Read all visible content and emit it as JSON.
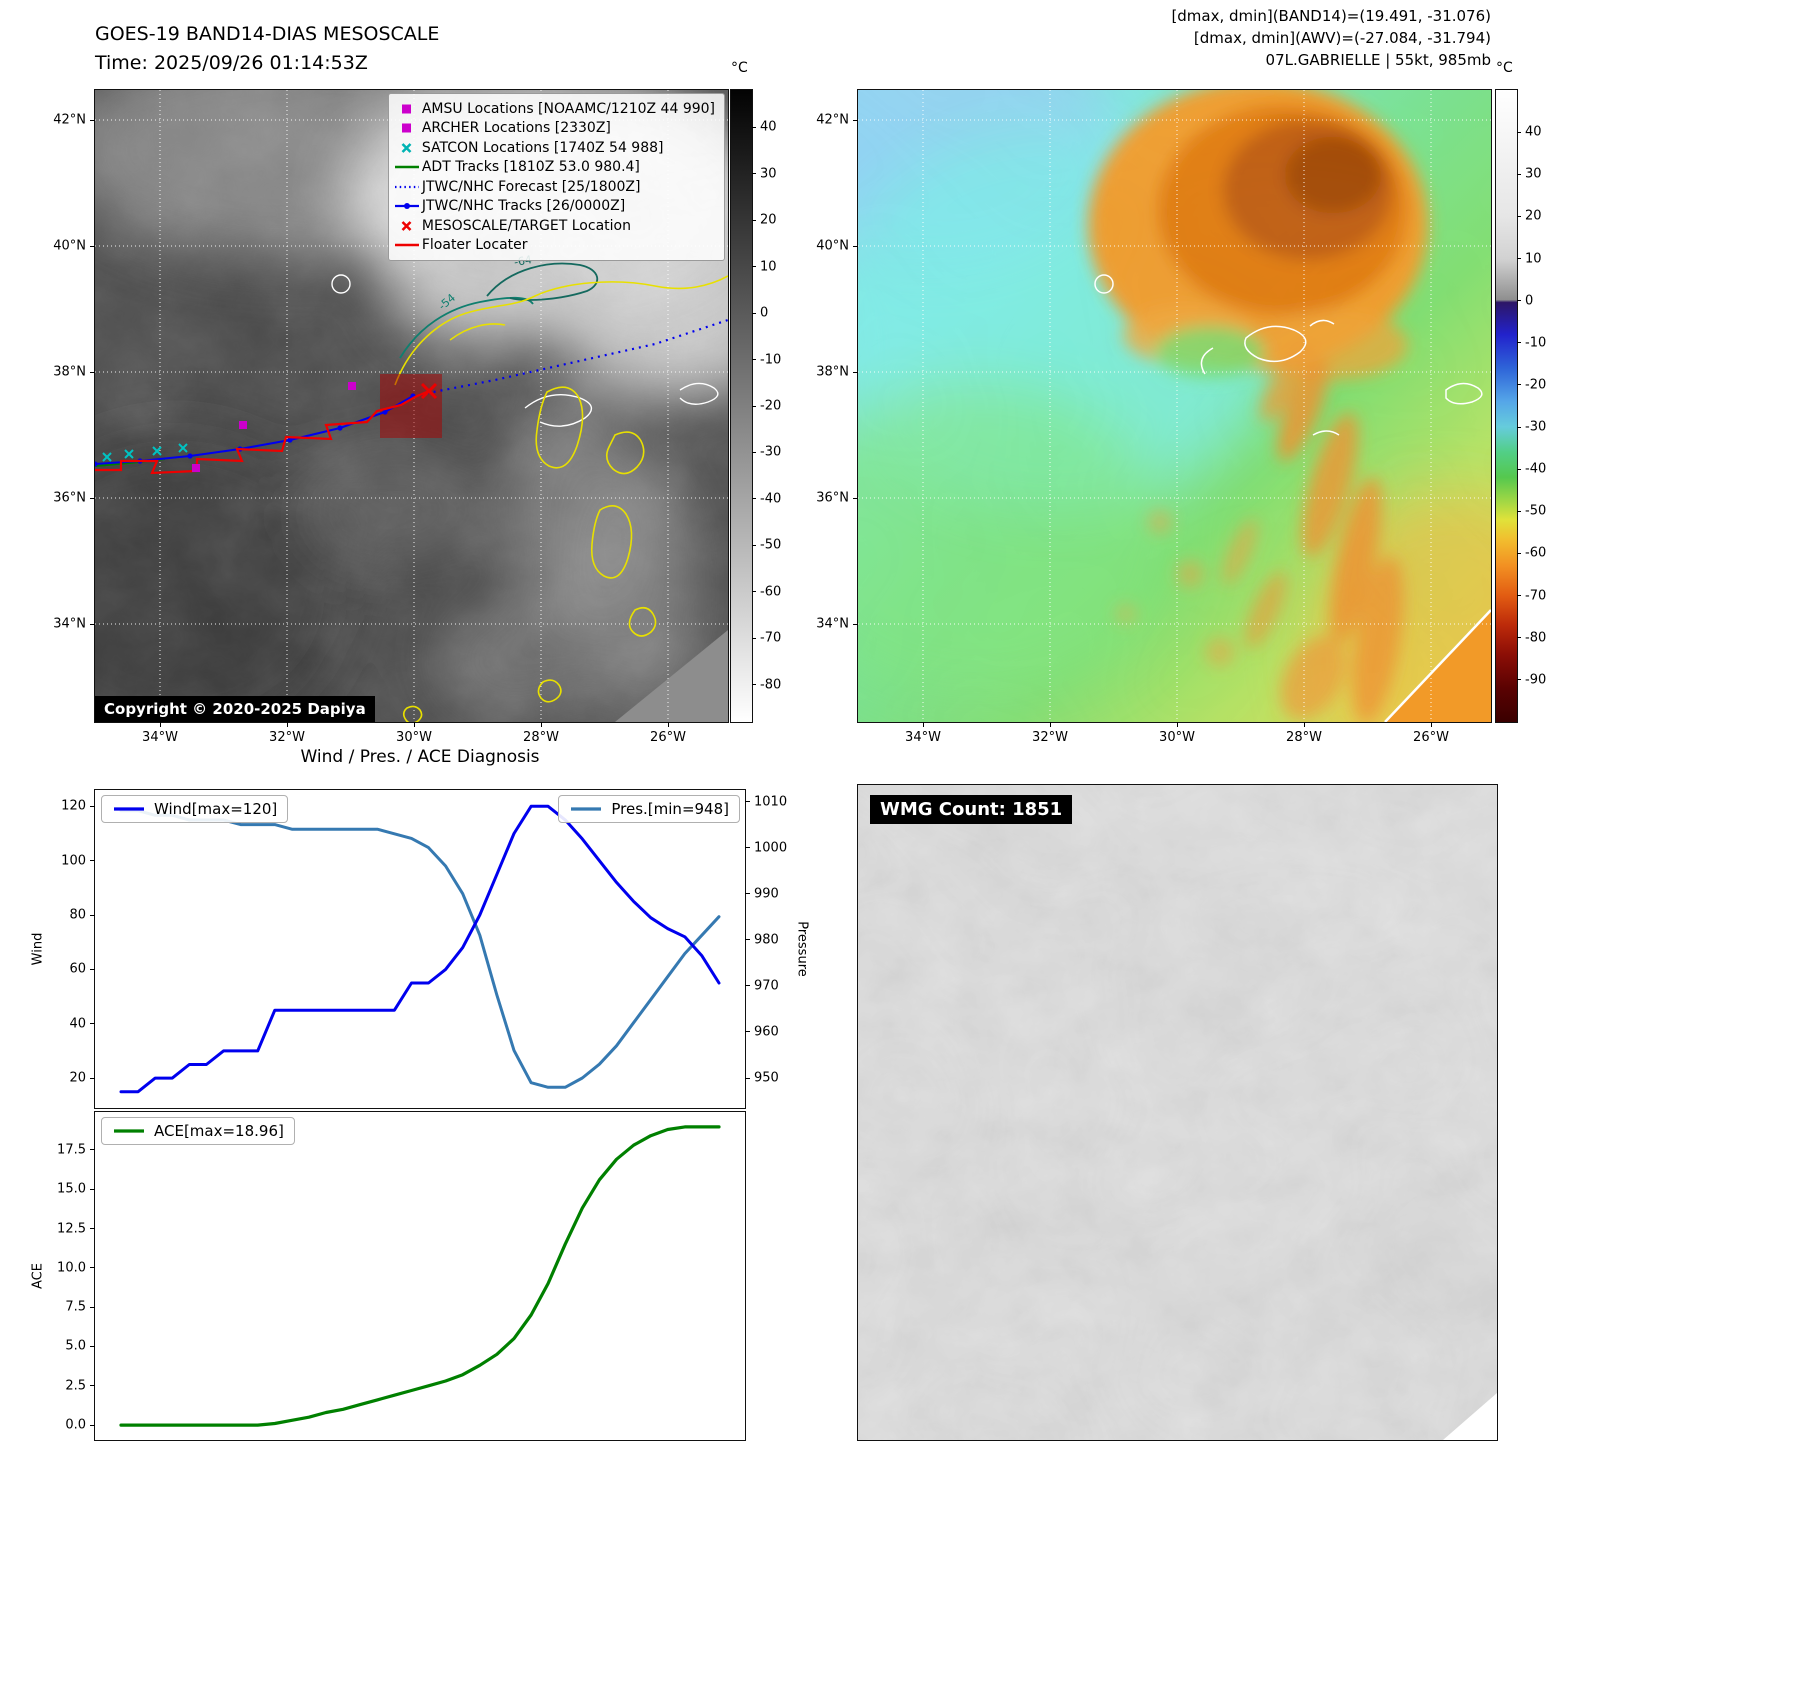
{
  "panel_band14": {
    "title": "GOES-19 BAND14-DIAS MESOSCALE",
    "time_line": "Time: 2025/09/26 01:14:53Z",
    "copyright": "Copyright © 2020-2025 Dapiya",
    "lat_ticks": [
      "42°N",
      "40°N",
      "38°N",
      "36°N",
      "34°N"
    ],
    "lon_ticks": [
      "34°W",
      "32°W",
      "30°W",
      "28°W",
      "26°W"
    ],
    "colorbar": {
      "unit": "°C",
      "tick_labels": [
        "40",
        "30",
        "20",
        "10",
        "0",
        "-10",
        "-20",
        "-30",
        "-40",
        "-50",
        "-60",
        "-70",
        "-80"
      ]
    },
    "contour_labels": [
      "-64",
      "-54"
    ],
    "legend": [
      {
        "label": "AMSU Locations [NOAAMC/1210Z 44 990]",
        "marker": "square",
        "color": "#cc00cc"
      },
      {
        "label": "ARCHER Locations [2330Z]",
        "marker": "square",
        "color": "#cc00cc"
      },
      {
        "label": "SATCON Locations [1740Z 54 988]",
        "marker": "x",
        "color": "#00b3b3"
      },
      {
        "label": "ADT Tracks [1810Z 53.0 980.4]",
        "marker": "line",
        "color": "#008000"
      },
      {
        "label": "JTWC/NHC Forecast [25/1800Z]",
        "marker": "dotted",
        "color": "#0000ee"
      },
      {
        "label": "JTWC/NHC Tracks [26/0000Z]",
        "marker": "line-dot",
        "color": "#0000ee"
      },
      {
        "label": "MESOSCALE/TARGET Location",
        "marker": "x",
        "color": "#ee0000"
      },
      {
        "label": "Floater Locater",
        "marker": "line",
        "color": "#ee0000"
      }
    ]
  },
  "panel_awv": {
    "header_lines": [
      "[dmax, dmin](BAND14)=(19.491, -31.076)",
      "[dmax, dmin](AWV)=(-27.084, -31.794)",
      "07L.GABRIELLE | 55kt, 985mb"
    ],
    "lat_ticks": [
      "42°N",
      "40°N",
      "38°N",
      "36°N",
      "34°N"
    ],
    "lon_ticks": [
      "34°W",
      "32°W",
      "30°W",
      "28°W",
      "26°W"
    ],
    "colorbar": {
      "unit": "°C",
      "tick_labels": [
        "40",
        "30",
        "20",
        "10",
        "0",
        "-10",
        "-20",
        "-30",
        "-40",
        "-50",
        "-60",
        "-70",
        "-80",
        "-90"
      ]
    }
  },
  "diagnosis": {
    "title": "Wind / Pres. / ACE Diagnosis"
  },
  "wmg": {
    "label": "WMG Count: 1851"
  },
  "chart_data": [
    {
      "type": "line",
      "title": "Wind / Pres. / ACE Diagnosis (upper panel: wind and pressure)",
      "x": [
        0,
        1,
        2,
        3,
        4,
        5,
        6,
        7,
        8,
        9,
        10,
        11,
        12,
        13,
        14,
        15,
        16,
        17,
        18,
        19,
        20,
        21,
        22,
        23,
        24,
        25,
        26,
        27,
        28,
        29,
        30,
        31,
        32,
        33,
        34,
        35
      ],
      "x_axis": {
        "label": "",
        "visible_labels": false
      },
      "series": [
        {
          "name": "Wind[max=120]",
          "axis": "left",
          "color": "#0000ee",
          "values": [
            15,
            15,
            20,
            20,
            25,
            25,
            30,
            30,
            30,
            45,
            45,
            45,
            45,
            45,
            45,
            45,
            45,
            55,
            55,
            60,
            68,
            80,
            95,
            110,
            120,
            120,
            115,
            108,
            100,
            92,
            85,
            79,
            75,
            72,
            65,
            55
          ]
        },
        {
          "name": "Pres.[min=948]",
          "axis": "right",
          "color": "#3579b1",
          "values": [
            1008,
            1008,
            1007,
            1007,
            1006,
            1006,
            1006,
            1005,
            1005,
            1005,
            1004,
            1004,
            1004,
            1004,
            1004,
            1004,
            1003,
            1002,
            1000,
            996,
            990,
            981,
            968,
            956,
            949,
            948,
            948,
            950,
            953,
            957,
            962,
            967,
            972,
            977,
            981,
            985
          ]
        }
      ],
      "left_axis": {
        "label": "Wind",
        "tick_labels": [
          "20",
          "40",
          "60",
          "80",
          "100",
          "120"
        ],
        "range": [
          9,
          126
        ]
      },
      "right_axis": {
        "label": "Pressure",
        "tick_labels": [
          "950",
          "960",
          "970",
          "980",
          "990",
          "1000",
          "1010"
        ],
        "range": [
          943.5,
          1012.5
        ]
      },
      "legend_position": "upper-left and upper-right",
      "grid": false
    },
    {
      "type": "line",
      "title": "Wind / Pres. / ACE Diagnosis (lower panel: accumulated cyclone energy)",
      "x": [
        0,
        1,
        2,
        3,
        4,
        5,
        6,
        7,
        8,
        9,
        10,
        11,
        12,
        13,
        14,
        15,
        16,
        17,
        18,
        19,
        20,
        21,
        22,
        23,
        24,
        25,
        26,
        27,
        28,
        29,
        30,
        31,
        32,
        33,
        34,
        35
      ],
      "x_axis": {
        "label": "",
        "visible_labels": false
      },
      "series": [
        {
          "name": "ACE[max=18.96]",
          "axis": "left",
          "color": "#008000",
          "values": [
            0,
            0,
            0,
            0,
            0,
            0,
            0,
            0,
            0,
            0.1,
            0.3,
            0.5,
            0.8,
            1.0,
            1.3,
            1.6,
            1.9,
            2.2,
            2.5,
            2.8,
            3.2,
            3.8,
            4.5,
            5.5,
            7.0,
            9.0,
            11.5,
            13.8,
            15.6,
            16.9,
            17.8,
            18.4,
            18.8,
            18.96,
            18.96,
            18.96
          ]
        }
      ],
      "left_axis": {
        "label": "ACE",
        "tick_labels": [
          "0.0",
          "2.5",
          "5.0",
          "7.5",
          "10.0",
          "12.5",
          "15.0",
          "17.5"
        ],
        "range": [
          -0.95,
          19.91
        ]
      },
      "legend_position": "upper-left",
      "grid": false
    }
  ]
}
